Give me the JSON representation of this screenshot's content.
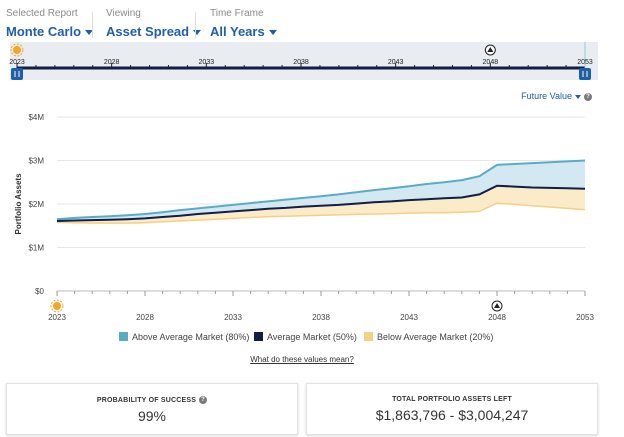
{
  "header": {
    "report": {
      "label": "Selected Report",
      "value": "Monte Carlo"
    },
    "viewing": {
      "label": "Viewing",
      "value": "Asset Spread"
    },
    "timeframe": {
      "label": "Time Frame",
      "value": "All Years"
    }
  },
  "timeline": {
    "start_year": 2023,
    "end_year": 2053,
    "tick_labels": [
      "2023",
      "2028",
      "2033",
      "2038",
      "2043",
      "2048",
      "2053"
    ],
    "milestone_year": 2048,
    "handle_start": "handle-icon",
    "handle_end": "handle-icon",
    "start_marker": "sun-icon",
    "milestone_marker": "mountain-icon"
  },
  "value_selector": {
    "label": "Future Value",
    "help": "?"
  },
  "chart_data": {
    "type": "area",
    "title": "",
    "xlabel": "",
    "ylabel": "Portfolio Assets",
    "x": [
      2023,
      2024,
      2025,
      2026,
      2027,
      2028,
      2029,
      2030,
      2031,
      2032,
      2033,
      2034,
      2035,
      2036,
      2037,
      2038,
      2039,
      2040,
      2041,
      2042,
      2043,
      2044,
      2045,
      2046,
      2047,
      2048,
      2049,
      2050,
      2051,
      2052,
      2053
    ],
    "xlim": [
      2023,
      2053
    ],
    "xticks": [
      "2023",
      "2028",
      "2033",
      "2038",
      "2043",
      "2048",
      "2053"
    ],
    "ylim": [
      0,
      4000000
    ],
    "yticks": [
      "$0",
      "$1M",
      "$2M",
      "$3M",
      "$4M"
    ],
    "ytick_values": [
      0,
      1000000,
      2000000,
      3000000,
      4000000
    ],
    "grid": "horizontal",
    "series": [
      {
        "name": "Above Average Market (80%)",
        "color": "#5aabc8",
        "values": [
          1.65,
          1.68,
          1.7,
          1.72,
          1.74,
          1.77,
          1.81,
          1.86,
          1.9,
          1.94,
          1.98,
          2.02,
          2.06,
          2.1,
          2.14,
          2.18,
          2.22,
          2.27,
          2.32,
          2.36,
          2.41,
          2.46,
          2.5,
          2.55,
          2.64,
          2.9,
          2.92,
          2.94,
          2.96,
          2.98,
          3.0
        ]
      },
      {
        "name": "Average Market (50%)",
        "color": "#101e48",
        "values": [
          1.61,
          1.62,
          1.63,
          1.64,
          1.65,
          1.67,
          1.7,
          1.73,
          1.77,
          1.8,
          1.83,
          1.86,
          1.89,
          1.91,
          1.94,
          1.96,
          1.98,
          2.01,
          2.04,
          2.06,
          2.09,
          2.11,
          2.13,
          2.15,
          2.22,
          2.42,
          2.4,
          2.38,
          2.37,
          2.36,
          2.35
        ]
      },
      {
        "name": "Below Average Market (20%)",
        "color": "#f6cf86",
        "values": [
          1.58,
          1.57,
          1.56,
          1.56,
          1.56,
          1.57,
          1.59,
          1.61,
          1.63,
          1.65,
          1.67,
          1.69,
          1.71,
          1.72,
          1.73,
          1.74,
          1.75,
          1.76,
          1.77,
          1.78,
          1.79,
          1.8,
          1.8,
          1.81,
          1.83,
          2.02,
          1.99,
          1.96,
          1.93,
          1.9,
          1.87
        ]
      }
    ],
    "value_scale": 1000000,
    "markers": {
      "start_year": 2023,
      "milestone_year": 2048
    },
    "area_color": "#d3e8f0",
    "below_area_color": "#fcebc9"
  },
  "legend": [
    {
      "label": "Above Average Market (80%)",
      "color": "#5aabc8"
    },
    {
      "label": "Average Market (50%)",
      "color": "#101e48"
    },
    {
      "label": "Below Average Market (20%)",
      "color": "#f6cf86"
    }
  ],
  "values_link": "What do these values mean?",
  "cards": {
    "probability": {
      "label": "PROBABILITY OF SUCCESS",
      "value": "99%",
      "help": "?"
    },
    "assets": {
      "label": "TOTAL PORTFOLIO ASSETS LEFT",
      "value": "$1,863,796 - $3,004,247"
    }
  },
  "colors": {
    "accent": "#1f5fa8",
    "navy": "#101e48",
    "timeline_bg": "#e9ecf1",
    "marker_orange": "#f5a623"
  }
}
